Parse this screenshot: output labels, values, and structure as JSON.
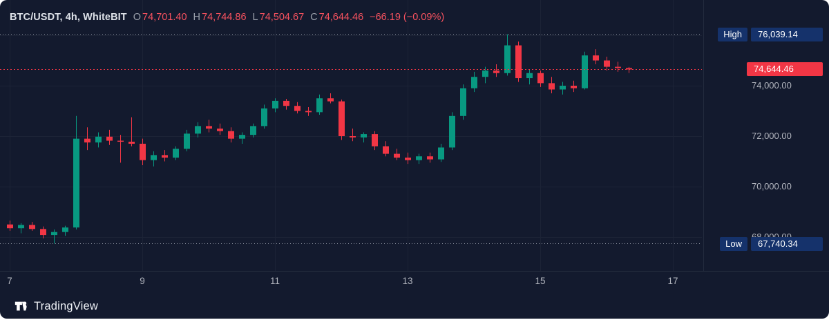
{
  "legend": {
    "symbol": "BTC/USDT, 4h, WhiteBIT",
    "ohlc": [
      {
        "label": "O",
        "value": "74,701.40"
      },
      {
        "label": "H",
        "value": "74,744.86"
      },
      {
        "label": "L",
        "value": "74,504.67"
      },
      {
        "label": "C",
        "value": "74,644.46"
      }
    ],
    "change": "−66.19 (−0.09%)"
  },
  "price_axis": {
    "high_label": "High",
    "high_value": "76,039.14",
    "current_price": "74,644.46",
    "low_label": "Low",
    "low_value": "67,740.34"
  },
  "footer": {
    "brand": "TradingView"
  },
  "colors": {
    "background": "#131a2e",
    "up": "#089981",
    "down": "#f23645",
    "grid": "#1c2336",
    "separator": "#232b3d",
    "axis_text": "#b2b5be",
    "badge_blue": "#15326b",
    "hl_line": "#8f95a3"
  },
  "chart_data": {
    "type": "candlestick",
    "title": "BTC/USDT, 4h, WhiteBIT",
    "symbol": "BTC/USDT",
    "interval": "4h",
    "exchange": "WhiteBIT",
    "last_candle": {
      "open": 74701.4,
      "high": 74744.86,
      "low": 74504.67,
      "close": 74644.46,
      "change": -66.19,
      "change_pct": -0.09
    },
    "session_high": 76039.14,
    "session_low": 67740.34,
    "current_price": 74644.46,
    "start_day": 7,
    "candles_per_day": 6,
    "x_ticks": [
      {
        "day": 7,
        "label": "7"
      },
      {
        "day": 9,
        "label": "9"
      },
      {
        "day": 11,
        "label": "11"
      },
      {
        "day": 13,
        "label": "13"
      },
      {
        "day": 15,
        "label": "15"
      },
      {
        "day": 17,
        "label": "17"
      }
    ],
    "y_ticks": [
      {
        "price": 74000,
        "label": "74,000.00"
      },
      {
        "price": 72000,
        "label": "72,000.00"
      },
      {
        "price": 70000,
        "label": "70,000.00"
      },
      {
        "price": 68000,
        "label": "68,000.00"
      }
    ],
    "ylim": [
      67400,
      76400
    ],
    "grid": true,
    "candles": [
      [
        68500,
        68650,
        68250,
        68350
      ],
      [
        68350,
        68550,
        68150,
        68480
      ],
      [
        68480,
        68600,
        68250,
        68320
      ],
      [
        68320,
        68420,
        67950,
        68080
      ],
      [
        68080,
        68300,
        67740.34,
        68200
      ],
      [
        68200,
        68450,
        68050,
        68380
      ],
      [
        68380,
        72800,
        68300,
        71900
      ],
      [
        71900,
        72350,
        71450,
        71750
      ],
      [
        71750,
        72150,
        71550,
        71980
      ],
      [
        71980,
        72250,
        71650,
        71820
      ],
      [
        71820,
        72050,
        70950,
        71780
      ],
      [
        71780,
        72750,
        71600,
        71700
      ],
      [
        71700,
        71900,
        70850,
        71050
      ],
      [
        71050,
        71400,
        70800,
        71250
      ],
      [
        71250,
        71450,
        71000,
        71150
      ],
      [
        71150,
        71600,
        71050,
        71500
      ],
      [
        71500,
        72250,
        71400,
        72100
      ],
      [
        72100,
        72550,
        71950,
        72400
      ],
      [
        72400,
        72650,
        72150,
        72300
      ],
      [
        72300,
        72500,
        72050,
        72200
      ],
      [
        72200,
        72350,
        71750,
        71900
      ],
      [
        71900,
        72150,
        71700,
        72050
      ],
      [
        72050,
        72500,
        71950,
        72400
      ],
      [
        72400,
        73250,
        72300,
        73100
      ],
      [
        73100,
        73500,
        72950,
        73400
      ],
      [
        73400,
        73480,
        73050,
        73200
      ],
      [
        73200,
        73350,
        72900,
        73000
      ],
      [
        73000,
        73150,
        72800,
        72950
      ],
      [
        72950,
        73650,
        72850,
        73500
      ],
      [
        73500,
        73700,
        73300,
        73380
      ],
      [
        73380,
        73450,
        71850,
        72000
      ],
      [
        72000,
        72300,
        71800,
        71950
      ],
      [
        71950,
        72150,
        71750,
        72080
      ],
      [
        72080,
        72200,
        71450,
        71600
      ],
      [
        71600,
        71800,
        71200,
        71300
      ],
      [
        71300,
        71500,
        71050,
        71150
      ],
      [
        71150,
        71350,
        70900,
        71050
      ],
      [
        71050,
        71300,
        70900,
        71200
      ],
      [
        71200,
        71350,
        70950,
        71080
      ],
      [
        71080,
        71700,
        70980,
        71550
      ],
      [
        71550,
        72950,
        71450,
        72800
      ],
      [
        72800,
        74050,
        72650,
        73900
      ],
      [
        73900,
        74550,
        73750,
        74350
      ],
      [
        74350,
        74750,
        74100,
        74600
      ],
      [
        74600,
        74850,
        74350,
        74500
      ],
      [
        74500,
        76039.14,
        74400,
        75600
      ],
      [
        75600,
        75750,
        74150,
        74300
      ],
      [
        74300,
        74650,
        74050,
        74500
      ],
      [
        74500,
        74600,
        73950,
        74100
      ],
      [
        74100,
        74350,
        73700,
        73850
      ],
      [
        73850,
        74150,
        73650,
        74000
      ],
      [
        74000,
        74200,
        73750,
        73900
      ],
      [
        73900,
        75350,
        73850,
        75200
      ],
      [
        75200,
        75450,
        74850,
        75000
      ],
      [
        75000,
        75150,
        74600,
        74750
      ],
      [
        74750,
        74950,
        74550,
        74701.4
      ],
      [
        74701.4,
        74744.86,
        74504.67,
        74644.46
      ]
    ]
  }
}
